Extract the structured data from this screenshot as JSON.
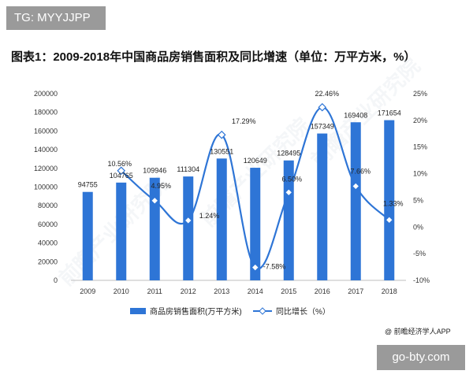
{
  "badge": "TG: MYYJJPP",
  "site_badge": "go-bty.com",
  "source": "@ 前瞻经济学人APP",
  "watermark": "前瞻产业研究院",
  "colors": {
    "bar": "#2e75d6",
    "line": "#2e75d6",
    "marker_fill": "#ffffff",
    "axis_text": "#333333"
  },
  "chart_data": {
    "type": "bar",
    "title": "图表1：2009-2018年中国商品房销售面积及同比增速（单位：万平方米，%）",
    "categories": [
      "2009",
      "2010",
      "2011",
      "2012",
      "2013",
      "2014",
      "2015",
      "2016",
      "2017",
      "2018"
    ],
    "series": [
      {
        "name": "商品房销售面积(万平方米)",
        "type": "bar",
        "axis": "left",
        "values": [
          94755,
          104765,
          109946,
          111304,
          130551,
          120649,
          128495,
          157349,
          169408,
          171654
        ],
        "labels": [
          "94755",
          "104765",
          "109946",
          "111304",
          "130551",
          "120649",
          "128495",
          "157349",
          "169408",
          "171654"
        ]
      },
      {
        "name": "同比增长（%）",
        "type": "line",
        "smooth": true,
        "axis": "right",
        "values": [
          null,
          10.56,
          4.95,
          1.24,
          17.29,
          -7.58,
          6.5,
          22.46,
          7.66,
          1.33
        ],
        "labels": [
          "",
          "10.56%",
          "4.95%",
          "1.24%",
          "17.29%",
          "-7.58%",
          "6.50%",
          "22.46%",
          "7.66%",
          "1.33%"
        ]
      }
    ],
    "y_left": {
      "min": 0,
      "max": 200000,
      "ticks": [
        "0",
        "20000",
        "40000",
        "60000",
        "80000",
        "100000",
        "120000",
        "140000",
        "160000",
        "180000",
        "200000"
      ]
    },
    "y_right": {
      "min": -10,
      "max": 25,
      "ticks": [
        "-10%",
        "-5%",
        "0%",
        "5%",
        "10%",
        "15%",
        "20%",
        "25%"
      ]
    },
    "grid": false,
    "legend": "bottom"
  }
}
